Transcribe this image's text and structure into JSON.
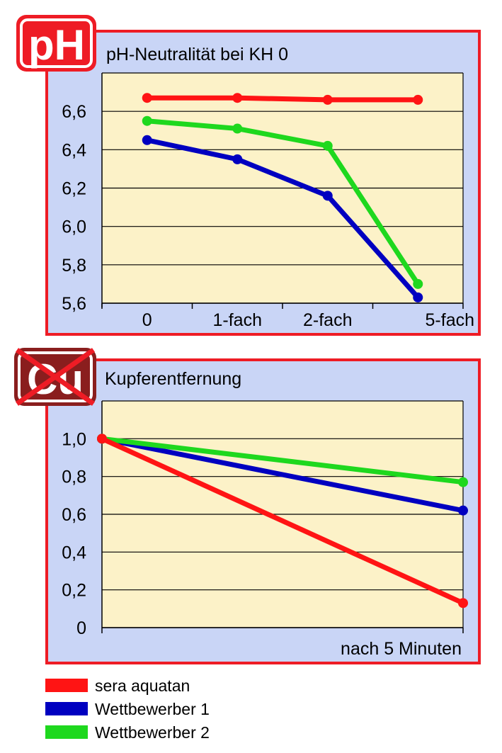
{
  "logos": {
    "ph": "pH",
    "cu": "Cu"
  },
  "colors": {
    "frame": "#ee1c25",
    "panel_bg": "#c9d5f6",
    "plot_bg": "#fcf2c8",
    "series": [
      "#ff1414",
      "#0000c0",
      "#1ed81e"
    ],
    "cu_logo": "#8a1e1e"
  },
  "legend": [
    {
      "label": "sera aquatan",
      "color": "#ff1414"
    },
    {
      "label": "Wettbewerber 1",
      "color": "#0000c0"
    },
    {
      "label": "Wettbewerber 2",
      "color": "#1ed81e"
    }
  ],
  "chart_data": [
    {
      "type": "line",
      "title": "pH-Neutralität bei KH 0",
      "categories": [
        "0",
        "1-fach",
        "2-fach",
        "5-fach"
      ],
      "ylim": [
        5.6,
        6.8
      ],
      "yticks": [
        "6,6",
        "6,4",
        "6,2",
        "6,0",
        "5,8",
        "5,6"
      ],
      "ytick_values": [
        6.6,
        6.4,
        6.2,
        6.0,
        5.8,
        5.6
      ],
      "grid": true,
      "series": [
        {
          "name": "sera aquatan",
          "values": [
            6.67,
            6.67,
            6.66,
            6.66
          ]
        },
        {
          "name": "Wettbewerber 1",
          "values": [
            6.45,
            6.35,
            6.16,
            5.63
          ]
        },
        {
          "name": "Wettbewerber 2",
          "values": [
            6.55,
            6.51,
            6.42,
            5.7
          ]
        }
      ]
    },
    {
      "type": "line",
      "title": "Kupferentfernung",
      "categories": [
        "",
        "nach 5 Minuten"
      ],
      "ylim": [
        0,
        1.2
      ],
      "yticks": [
        "1,0",
        "0,8",
        "0,6",
        "0,4",
        "0,2",
        "0"
      ],
      "ytick_values": [
        1.0,
        0.8,
        0.6,
        0.4,
        0.2,
        0
      ],
      "grid": true,
      "series": [
        {
          "name": "sera aquatan",
          "values": [
            1.0,
            0.13
          ]
        },
        {
          "name": "Wettbewerber 1",
          "values": [
            1.0,
            0.62
          ]
        },
        {
          "name": "Wettbewerber 2",
          "values": [
            1.0,
            0.77
          ]
        }
      ]
    }
  ]
}
